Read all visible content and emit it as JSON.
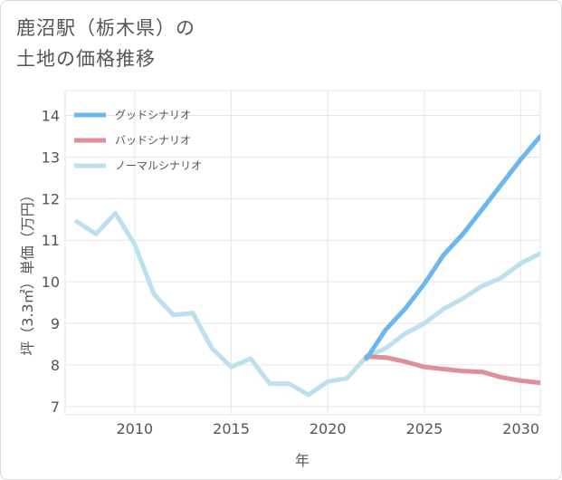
{
  "title_line1": "鹿沼駅（栃木県）の",
  "title_line2": "土地の価格推移",
  "chart_data": {
    "type": "line",
    "xlabel": "年",
    "ylabel": "坪（3.3㎡）単価（万円）",
    "xlim": [
      2006.4,
      2031
    ],
    "ylim": [
      6.8,
      14.6
    ],
    "xticks": [
      2010,
      2015,
      2020,
      2025,
      2030
    ],
    "yticks": [
      7,
      8,
      9,
      10,
      11,
      12,
      13,
      14
    ],
    "grid": true,
    "legend_position": "top-left",
    "series": [
      {
        "name": "グッドシナリオ",
        "color": "#6cb8ee",
        "x": [
          2022,
          2023,
          2024,
          2025,
          2026,
          2027,
          2028,
          2029,
          2030,
          2031
        ],
        "y": [
          8.15,
          8.85,
          9.35,
          9.95,
          10.65,
          11.15,
          11.75,
          12.35,
          12.95,
          13.5
        ]
      },
      {
        "name": "バッドシナリオ",
        "color": "#df8f96",
        "x": [
          2022,
          2023,
          2024,
          2025,
          2026,
          2027,
          2028,
          2029,
          2030,
          2031
        ],
        "y": [
          8.2,
          8.18,
          8.08,
          7.95,
          7.9,
          7.85,
          7.83,
          7.7,
          7.62,
          7.57
        ]
      },
      {
        "name": "ノーマルシナリオ",
        "color": "#bde0ee",
        "x": [
          2007,
          2008,
          2009,
          2010,
          2011,
          2012,
          2013,
          2014,
          2015,
          2016,
          2017,
          2018,
          2019,
          2020,
          2021,
          2022,
          2023,
          2024,
          2025,
          2026,
          2027,
          2028,
          2029,
          2030,
          2031
        ],
        "y": [
          11.45,
          11.15,
          11.65,
          10.9,
          9.7,
          9.2,
          9.25,
          8.4,
          7.95,
          8.15,
          7.55,
          7.55,
          7.28,
          7.6,
          7.68,
          8.2,
          8.4,
          8.75,
          9.0,
          9.35,
          9.6,
          9.9,
          10.1,
          10.45,
          10.68
        ]
      }
    ]
  }
}
